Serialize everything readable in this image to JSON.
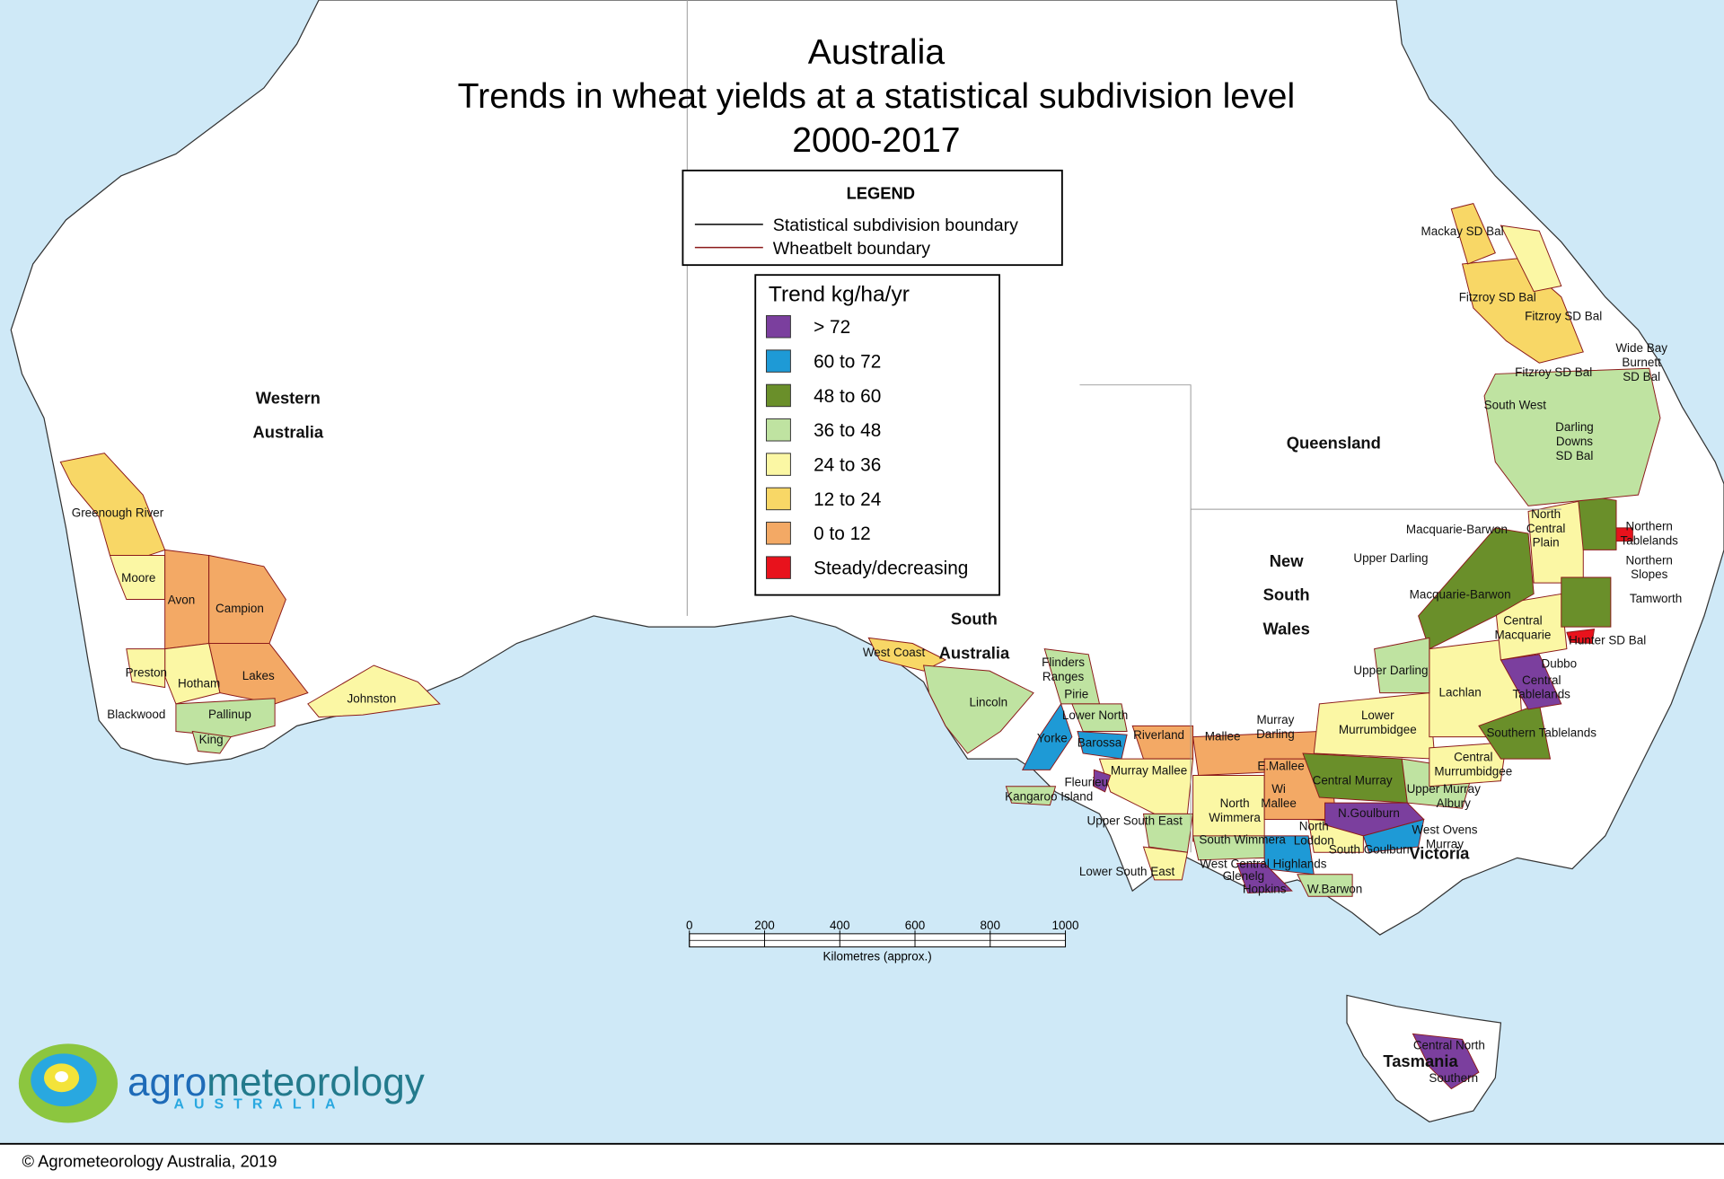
{
  "title": {
    "lines": [
      "Australia",
      "Trends in wheat yields at a statistical subdivision level",
      "2000-2017"
    ]
  },
  "legend": {
    "title": "LEGEND",
    "items": [
      "Statistical subdivision boundary",
      "Wheatbelt boundary"
    ]
  },
  "trend_legend": {
    "title": "Trend kg/ha/yr",
    "items": [
      {
        "label": "> 72",
        "color": "#7b3f9e"
      },
      {
        "label": "60 to 72",
        "color": "#1e9ad6"
      },
      {
        "label": "48 to 60",
        "color": "#6a8f2a"
      },
      {
        "label": "36 to 48",
        "color": "#bfe3a1"
      },
      {
        "label": "24 to 36",
        "color": "#fbf7a4"
      },
      {
        "label": "12 to 24",
        "color": "#f8d766"
      },
      {
        "label": "0 to 12",
        "color": "#f3a965"
      },
      {
        "label": "Steady/decreasing",
        "color": "#e8121c"
      }
    ]
  },
  "states": [
    {
      "lines": [
        "Western",
        "Australia"
      ]
    },
    {
      "lines": [
        "South",
        "Australia"
      ]
    },
    {
      "lines": [
        "Queensland"
      ]
    },
    {
      "lines": [
        "New",
        "South",
        "Wales"
      ]
    },
    {
      "lines": [
        "Victoria"
      ]
    },
    {
      "lines": [
        "Tasmania"
      ]
    }
  ],
  "regions": [
    {
      "lines": [
        "Mackay SD Bal"
      ]
    },
    {
      "lines": [
        "Fitzroy SD Bal"
      ]
    },
    {
      "lines": [
        "Fitzroy SD Bal"
      ]
    },
    {
      "lines": [
        "Wide Bay",
        "Burnett",
        "SD Bal"
      ]
    },
    {
      "lines": [
        "Fitzroy SD Bal"
      ]
    },
    {
      "lines": [
        "South West"
      ]
    },
    {
      "lines": [
        "Darling",
        "Downs",
        "SD Bal"
      ]
    },
    {
      "lines": [
        "North",
        "Central",
        "Plain"
      ]
    },
    {
      "lines": [
        "Northern",
        "Tablelands"
      ]
    },
    {
      "lines": [
        "Macquarie-Barwon"
      ]
    },
    {
      "lines": [
        "Upper Darling"
      ]
    },
    {
      "lines": [
        "Northern",
        "Slopes"
      ]
    },
    {
      "lines": [
        "Macquarie-Barwon"
      ]
    },
    {
      "lines": [
        "Tamworth"
      ]
    },
    {
      "lines": [
        "Central",
        "Macquarie"
      ]
    },
    {
      "lines": [
        "Hunter SD Bal"
      ]
    },
    {
      "lines": [
        "Dubbo"
      ]
    },
    {
      "lines": [
        "Upper Darling"
      ]
    },
    {
      "lines": [
        "Central",
        "Tablelands"
      ]
    },
    {
      "lines": [
        "Lachlan"
      ]
    },
    {
      "lines": [
        "Lower",
        "Murrumbidgee"
      ]
    },
    {
      "lines": [
        "Southern Tablelands"
      ]
    },
    {
      "lines": [
        "Central",
        "Murrumbidgee"
      ]
    },
    {
      "lines": [
        "Murray",
        "Darling"
      ]
    },
    {
      "lines": [
        "Riverland"
      ]
    },
    {
      "lines": [
        "Mallee"
      ]
    },
    {
      "lines": [
        "Flinders",
        "Ranges"
      ]
    },
    {
      "lines": [
        "Pirie"
      ]
    },
    {
      "lines": [
        "Lower North"
      ]
    },
    {
      "lines": [
        "Yorke"
      ]
    },
    {
      "lines": [
        "Barossa"
      ]
    },
    {
      "lines": [
        "Murray Mallee"
      ]
    },
    {
      "lines": [
        "E.Mallee"
      ]
    },
    {
      "lines": [
        "Central Murray"
      ]
    },
    {
      "lines": [
        "Upper Murray"
      ]
    },
    {
      "lines": [
        "Albury"
      ]
    },
    {
      "lines": [
        "Fleurieu"
      ]
    },
    {
      "lines": [
        "Kangaroo Island"
      ]
    },
    {
      "lines": [
        "North",
        "Wimmera"
      ]
    },
    {
      "lines": [
        "Wi",
        "Mallee"
      ]
    },
    {
      "lines": [
        "N.Goulburn"
      ]
    },
    {
      "lines": [
        "Upper South East"
      ]
    },
    {
      "lines": [
        "North",
        "Loddon"
      ]
    },
    {
      "lines": [
        "West Ovens",
        "Murray"
      ]
    },
    {
      "lines": [
        "South Wimmera"
      ]
    },
    {
      "lines": [
        "South Goulburn"
      ]
    },
    {
      "lines": [
        "West Central Highlands"
      ]
    },
    {
      "lines": [
        "Lower South East"
      ]
    },
    {
      "lines": [
        "Glenelg"
      ]
    },
    {
      "lines": [
        "Hopkins"
      ]
    },
    {
      "lines": [
        "W.Barwon"
      ]
    },
    {
      "lines": [
        "Central North"
      ]
    },
    {
      "lines": [
        "Southern"
      ]
    },
    {
      "lines": [
        "West Coast"
      ]
    },
    {
      "lines": [
        "Lincoln"
      ]
    },
    {
      "lines": [
        "Johnston"
      ]
    },
    {
      "lines": [
        "Greenough River"
      ]
    },
    {
      "lines": [
        "Moore"
      ]
    },
    {
      "lines": [
        "Avon"
      ]
    },
    {
      "lines": [
        "Campion"
      ]
    },
    {
      "lines": [
        "Preston"
      ]
    },
    {
      "lines": [
        "Hotham"
      ]
    },
    {
      "lines": [
        "Lakes"
      ]
    },
    {
      "lines": [
        "Blackwood"
      ]
    },
    {
      "lines": [
        "Pallinup"
      ]
    },
    {
      "lines": [
        "King"
      ]
    }
  ],
  "scale_bar": {
    "ticks": [
      0,
      200,
      400,
      600,
      800,
      1000
    ],
    "label": "Kilometres (approx.)"
  },
  "logo": {
    "prefix": "agro",
    "name": "meteorology",
    "country": "AUSTRALIA"
  },
  "copyright": "© Agrometeorology Australia, 2019"
}
